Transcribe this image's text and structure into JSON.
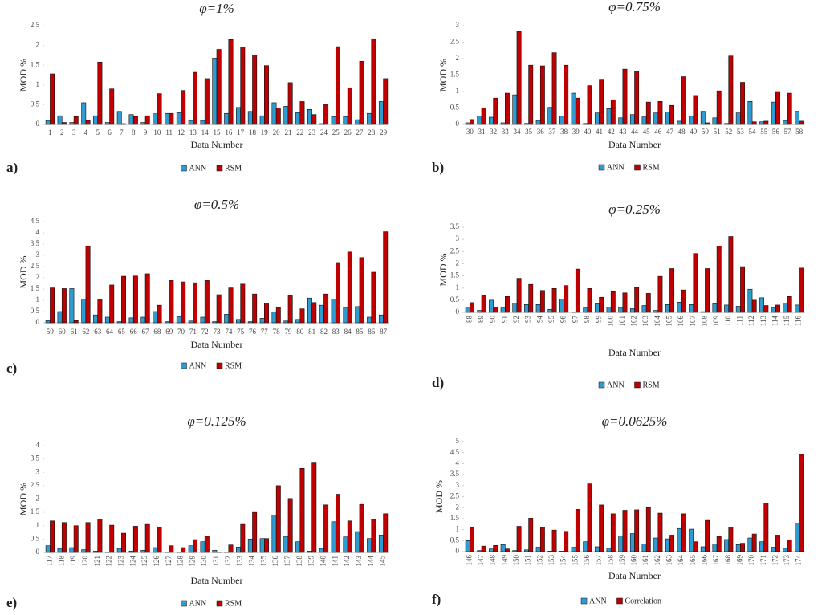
{
  "chart_data": [
    {
      "type": "bar",
      "title": "φ=1%",
      "label": "a)",
      "x_label": "Data Number",
      "y_label": "MOD %",
      "categories": [
        "1",
        "2",
        "3",
        "4",
        "5",
        "6",
        "7",
        "8",
        "9",
        "10",
        "11",
        "12",
        "13",
        "14",
        "15",
        "16",
        "17",
        "18",
        "19",
        "20",
        "21",
        "22",
        "23",
        "24",
        "25",
        "26",
        "27",
        "28",
        "29"
      ],
      "series": [
        {
          "name": "ANN",
          "color": "#2e9bd1",
          "values": [
            0.1,
            0.22,
            0.05,
            0.55,
            0.22,
            0.05,
            0.33,
            0.25,
            0.05,
            0.27,
            0.28,
            0.3,
            0.1,
            0.1,
            1.68,
            0.28,
            0.43,
            0.33,
            0.22,
            0.55,
            0.46,
            0.3,
            0.38,
            0.02,
            0.2,
            0.2,
            0.12,
            0.28,
            0.58
          ]
        },
        {
          "name": "RSM",
          "color": "#c00000",
          "values": [
            1.28,
            0.05,
            0.2,
            0.1,
            1.58,
            0.9,
            0.02,
            0.2,
            0.22,
            0.78,
            0.28,
            0.86,
            1.32,
            1.16,
            1.9,
            2.15,
            1.96,
            1.76,
            1.49,
            0.42,
            1.06,
            0.58,
            0.25,
            0.5,
            1.97,
            0.93,
            1.6,
            2.17,
            1.16
          ]
        }
      ],
      "ylim": [
        0,
        2.5
      ],
      "yticks": [
        0,
        0.5,
        1,
        1.5,
        2,
        2.5
      ]
    },
    {
      "type": "bar",
      "title": "φ=0.75%",
      "label": "b)",
      "x_label": "Data Number",
      "y_label": "MOD %",
      "categories": [
        "30",
        "31",
        "32",
        "33",
        "34",
        "35",
        "36",
        "37",
        "38",
        "39",
        "40",
        "41",
        "42",
        "43",
        "44",
        "45",
        "46",
        "47",
        "48",
        "49",
        "50",
        "51",
        "52",
        "53",
        "54",
        "55",
        "56",
        "57",
        "58"
      ],
      "series": [
        {
          "name": "ANN",
          "color": "#2e9bd1",
          "values": [
            0.05,
            0.25,
            0.22,
            0.05,
            0.9,
            0.03,
            0.12,
            0.52,
            0.25,
            0.95,
            0.03,
            0.35,
            0.48,
            0.2,
            0.3,
            0.23,
            0.35,
            0.38,
            0.1,
            0.25,
            0.4,
            0.2,
            0.03,
            0.35,
            0.7,
            0.08,
            0.68,
            0.12,
            0.4
          ]
        },
        {
          "name": "RSM",
          "color": "#c00000",
          "values": [
            0.15,
            0.5,
            0.8,
            0.95,
            2.82,
            1.8,
            1.78,
            2.18,
            1.8,
            0.8,
            1.18,
            1.35,
            0.75,
            1.68,
            1.6,
            0.68,
            0.7,
            0.58,
            1.45,
            0.88,
            0.05,
            1.02,
            2.08,
            1.28,
            0.08,
            0.1,
            1.0,
            0.95,
            0.1
          ]
        }
      ],
      "ylim": [
        0,
        3
      ],
      "yticks": [
        0,
        0.5,
        1,
        1.5,
        2,
        2.5,
        3
      ]
    },
    {
      "type": "bar",
      "title": "φ=0.5%",
      "label": "c)",
      "x_label": "Data Number",
      "y_label": "MOD %",
      "categories": [
        "59",
        "60",
        "61",
        "62",
        "63",
        "64",
        "65",
        "66",
        "67",
        "68",
        "69",
        "70",
        "71",
        "72",
        "73",
        "74",
        "75",
        "76",
        "77",
        "78",
        "79",
        "80",
        "81",
        "82",
        "83",
        "84",
        "85",
        "86",
        "87"
      ],
      "series": [
        {
          "name": "ANN",
          "color": "#2e9bd1",
          "values": [
            0.1,
            0.5,
            1.52,
            1.05,
            0.35,
            0.25,
            0.05,
            0.22,
            0.25,
            0.5,
            0.05,
            0.28,
            0.08,
            0.25,
            0.05,
            0.38,
            0.15,
            0.05,
            0.2,
            0.48,
            0.08,
            0.15,
            1.1,
            0.78,
            1.05,
            0.68,
            0.72,
            0.25,
            0.35
          ]
        },
        {
          "name": "RSM",
          "color": "#c00000",
          "values": [
            1.55,
            1.52,
            0.1,
            3.42,
            1.05,
            1.68,
            2.07,
            2.08,
            2.18,
            0.78,
            1.88,
            1.82,
            1.78,
            1.88,
            1.25,
            1.55,
            1.72,
            1.28,
            0.88,
            0.68,
            1.2,
            0.62,
            0.9,
            1.28,
            2.68,
            3.15,
            2.9,
            2.25,
            4.05
          ]
        }
      ],
      "ylim": [
        0,
        4.5
      ],
      "yticks": [
        0,
        0.5,
        1,
        1.5,
        2,
        2.5,
        3,
        3.5,
        4,
        4.5
      ]
    },
    {
      "type": "bar",
      "title": "φ=0.25%",
      "label": "d)",
      "x_label": "Data Number",
      "y_label": "MOD %",
      "categories": [
        "88",
        "89",
        "90",
        "91",
        "92",
        "93",
        "94",
        "95",
        "96",
        "97",
        "98",
        "99",
        "100",
        "101",
        "102",
        "103",
        "104",
        "105",
        "106",
        "107",
        "108",
        "109",
        "110",
        "111",
        "112",
        "113",
        "114",
        "115",
        "116"
      ],
      "series": [
        {
          "name": "ANN",
          "color": "#2e9bd1",
          "values": [
            0.22,
            0.08,
            0.5,
            0.18,
            0.38,
            0.32,
            0.32,
            0.12,
            0.55,
            0.02,
            0.18,
            0.35,
            0.22,
            0.2,
            0.15,
            0.28,
            0.08,
            0.32,
            0.42,
            0.32,
            0.03,
            0.35,
            0.3,
            0.25,
            0.95,
            0.6,
            0.18,
            0.38,
            0.3
          ]
        },
        {
          "name": "RSM",
          "color": "#c00000",
          "values": [
            0.4,
            0.68,
            0.22,
            0.65,
            1.4,
            1.15,
            0.9,
            0.98,
            1.1,
            1.78,
            0.98,
            0.62,
            0.85,
            0.8,
            1.02,
            0.78,
            1.48,
            1.8,
            0.92,
            2.42,
            1.8,
            2.72,
            3.12,
            1.88,
            0.5,
            0.28,
            0.3,
            0.65,
            1.82
          ]
        }
      ],
      "ylim": [
        0,
        3.5
      ],
      "yticks": [
        0,
        0.5,
        1,
        1.5,
        2,
        2.5,
        3,
        3.5
      ]
    },
    {
      "type": "bar",
      "title": "φ=0.125%",
      "label": "e)",
      "x_label": "Data Number",
      "y_label": "MOD %",
      "categories": [
        "117",
        "118",
        "119",
        "120",
        "121",
        "122",
        "123",
        "124",
        "125",
        "126",
        "127",
        "128",
        "129",
        "130",
        "131",
        "132",
        "133",
        "134",
        "135",
        "136",
        "137",
        "138",
        "139",
        "140",
        "141",
        "142",
        "143",
        "144",
        "145"
      ],
      "series": [
        {
          "name": "ANN",
          "color": "#2e9bd1",
          "values": [
            0.25,
            0.15,
            0.18,
            0.1,
            0.05,
            0.02,
            0.15,
            0.05,
            0.08,
            0.18,
            0.02,
            0.02,
            0.25,
            0.4,
            0.08,
            0.02,
            0.2,
            0.5,
            0.52,
            1.4,
            0.6,
            0.4,
            0.05,
            0.15,
            1.15,
            0.58,
            0.78,
            0.52,
            0.65
          ]
        },
        {
          "name": "RSM",
          "color": "#c00000",
          "values": [
            1.18,
            1.12,
            1.0,
            1.12,
            1.25,
            1.02,
            0.72,
            0.98,
            1.05,
            0.92,
            0.25,
            0.18,
            0.48,
            0.6,
            0.02,
            0.28,
            1.05,
            1.5,
            0.52,
            2.5,
            2.02,
            3.15,
            3.35,
            1.78,
            2.18,
            1.18,
            1.8,
            1.25,
            1.45
          ]
        }
      ],
      "ylim": [
        0,
        4
      ],
      "yticks": [
        0,
        0.5,
        1,
        1.5,
        2,
        2.5,
        3,
        3.5,
        4
      ]
    },
    {
      "type": "bar",
      "title": "φ=0.0625%",
      "label": "f)",
      "x_label": "Data Number",
      "y_label": "MOD %",
      "categories": [
        "146",
        "147",
        "148",
        "149",
        "150",
        "151",
        "152",
        "153",
        "154",
        "155",
        "156",
        "157",
        "158",
        "159",
        "160",
        "161",
        "162",
        "163",
        "164",
        "165",
        "166",
        "167",
        "168",
        "169",
        "170",
        "171",
        "172",
        "173",
        "174"
      ],
      "series": [
        {
          "name": "ANN",
          "color": "#2e9bd1",
          "values": [
            0.5,
            0.05,
            0.12,
            0.32,
            0.05,
            0.08,
            0.2,
            0.02,
            0.02,
            0.2,
            0.45,
            0.22,
            0.15,
            0.72,
            0.82,
            0.35,
            0.62,
            0.58,
            1.05,
            1.02,
            0.22,
            0.35,
            0.55,
            0.32,
            0.62,
            0.45,
            0.2,
            0.15,
            1.3
          ]
        },
        {
          "name": "Correlation",
          "color": "#c00000",
          "values": [
            1.1,
            0.25,
            0.28,
            0.12,
            1.15,
            1.52,
            1.12,
            0.98,
            0.92,
            1.92,
            3.08,
            2.12,
            1.72,
            1.88,
            1.9,
            2.0,
            1.75,
            0.75,
            1.72,
            0.45,
            1.42,
            0.68,
            1.12,
            0.38,
            0.8,
            2.2,
            0.75,
            0.52,
            4.42
          ]
        }
      ],
      "ylim": [
        0,
        5
      ],
      "yticks": [
        0,
        0.5,
        1,
        1.5,
        2,
        2.5,
        3,
        3.5,
        4,
        4.5,
        5
      ]
    }
  ]
}
